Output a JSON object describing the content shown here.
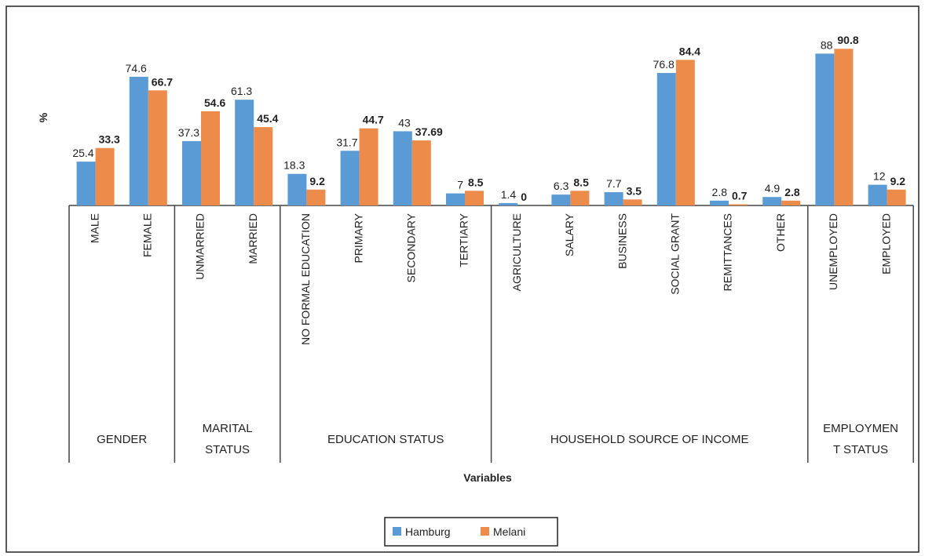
{
  "chart_data": {
    "type": "bar",
    "ylabel": "%",
    "xlabel": "Variables",
    "ylim": [
      0,
      100
    ],
    "groups": [
      {
        "name": "GENDER",
        "categories": [
          "MALE",
          "FEMALE"
        ]
      },
      {
        "name": "MARITAL STATUS",
        "categories": [
          "UNMARRIED",
          "MARRIED"
        ]
      },
      {
        "name": "EDUCATION STATUS",
        "categories": [
          "NO FORMAL EDUCATION",
          "PRIMARY",
          "SECONDARY",
          "TERTIARY"
        ]
      },
      {
        "name": "HOUSEHOLD SOURCE OF INCOME",
        "categories": [
          "AGRICULTURE",
          "SALARY",
          "BUSINESS",
          "SOCIAL GRANT",
          "REMITTANCES",
          "OTHER"
        ]
      },
      {
        "name": "EMPLOYMENT STATUS",
        "categories": [
          "UNEMPLOYED",
          "EMPLOYED"
        ]
      }
    ],
    "series": [
      {
        "name": "Hamburg",
        "color": "#5b9bd5",
        "values": [
          25.4,
          74.6,
          37.3,
          61.3,
          18.3,
          31.7,
          43,
          7,
          1.4,
          6.3,
          7.7,
          76.8,
          2.8,
          4.9,
          88,
          12
        ]
      },
      {
        "name": "Melani",
        "color": "#ed8b4a",
        "values": [
          33.3,
          66.7,
          54.6,
          45.4,
          9.2,
          44.7,
          37.69,
          8.5,
          0,
          8.5,
          3.5,
          84.4,
          0.7,
          2.8,
          90.8,
          9.2
        ]
      }
    ]
  }
}
